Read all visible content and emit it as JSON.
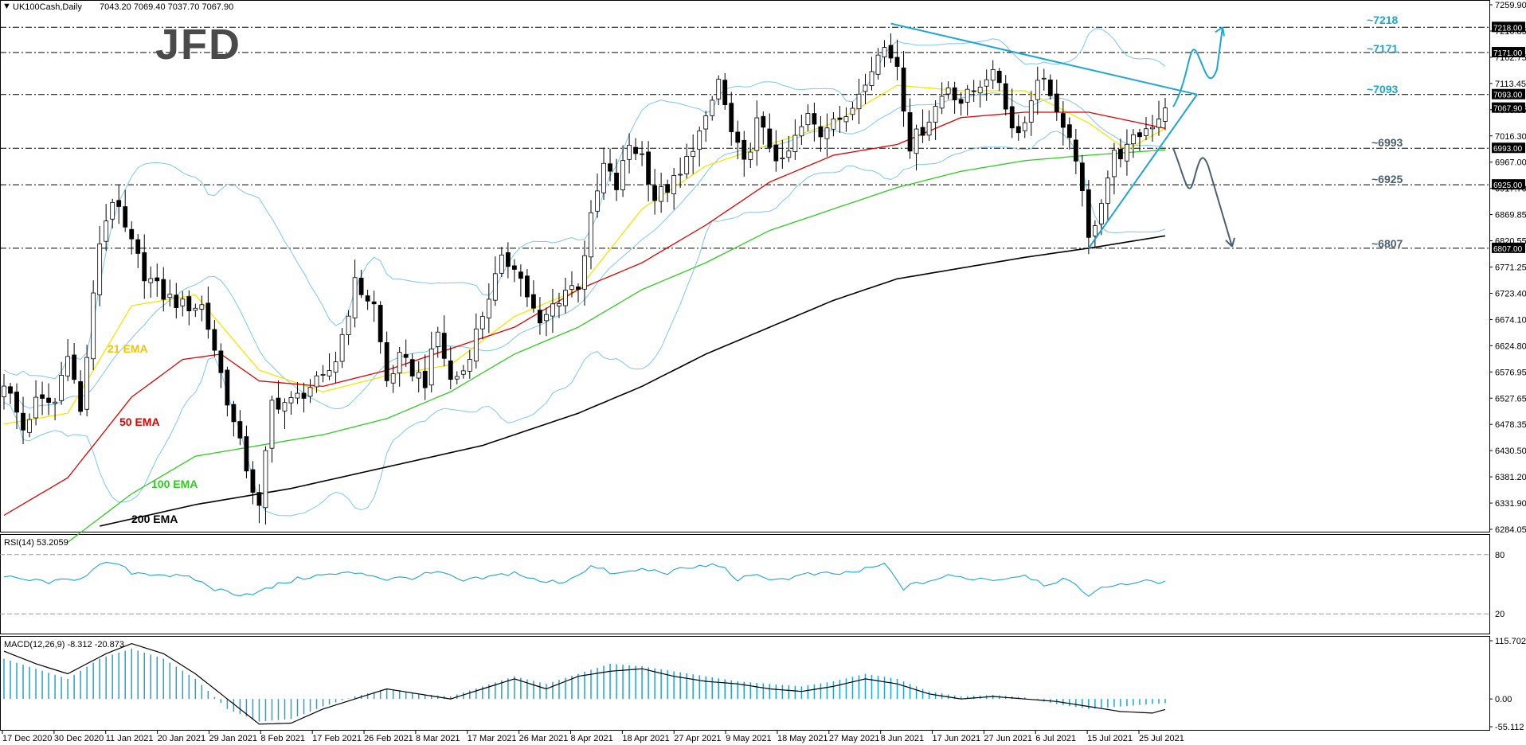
{
  "header": {
    "instrument": "UK100Cash,Daily",
    "ohlc": "7043.20 7069.40 7037.70 7067.90"
  },
  "logo": {
    "text": "JFD"
  },
  "colors": {
    "cyan": "#1ba6d6",
    "ema21": "#f5e600",
    "ema50": "#e00000",
    "ema100": "#2ecc1f",
    "ema200": "#000000",
    "bb": "#7cc7ec",
    "rsi": "#1ba6d6",
    "macd_hist": "#1ba6d6",
    "arrow_down": "#4a6070"
  },
  "price_axis": {
    "ticks": [
      "7259.90",
      "7210.85",
      "7162.75",
      "7113.45",
      "7065.55",
      "7016.30",
      "6967.00",
      "6917.70",
      "6869.85",
      "6820.55",
      "6771.25",
      "6723.40",
      "6674.10",
      "6624.80",
      "6576.95",
      "6527.65",
      "6478.35",
      "6430.50",
      "6381.20",
      "6331.90",
      "6284.05"
    ],
    "boxed": [
      {
        "text": "7218.00",
        "price": 7218,
        "style": "black"
      },
      {
        "text": "7171.00",
        "price": 7171,
        "style": "black"
      },
      {
        "text": "7093.00",
        "price": 7093,
        "style": "black"
      },
      {
        "text": "7067.90",
        "price": 7067.9,
        "style": "black"
      },
      {
        "text": "6993.00",
        "price": 6993,
        "style": "black"
      },
      {
        "text": "6925.00",
        "price": 6925,
        "style": "black"
      },
      {
        "text": "6807.00",
        "price": 6807,
        "style": "black"
      }
    ]
  },
  "levels": [
    {
      "label": "~7218",
      "price": 7218,
      "color": "#1ba6d6"
    },
    {
      "label": "~7171",
      "price": 7171,
      "color": "#1ba6d6"
    },
    {
      "label": "~7093",
      "price": 7093,
      "color": "#1ba6d6"
    },
    {
      "label": "~6993",
      "price": 6993,
      "color": "#4a6070"
    },
    {
      "label": "~6925",
      "price": 6925,
      "color": "#4a6070"
    },
    {
      "label": "~6807",
      "price": 6807,
      "color": "#4a6070"
    }
  ],
  "ema_labels": [
    {
      "text": "21 EMA",
      "color": "#f5c400"
    },
    {
      "text": "50 EMA",
      "color": "#e00000"
    },
    {
      "text": "100 EMA",
      "color": "#2ecc1f"
    },
    {
      "text": "200 EMA",
      "color": "#000000"
    }
  ],
  "rsi": {
    "label": "RSI(14) 53.2059",
    "levels": [
      "80",
      "20"
    ]
  },
  "macd": {
    "label": "MACD(12,26,9) -8.312 -20.873",
    "ticks": [
      "115.702",
      "0.00",
      "-55.112"
    ]
  },
  "date_axis": [
    "17 Dec 2020",
    "30 Dec 2020",
    "11 Jan 2021",
    "20 Jan 2021",
    "29 Jan 2021",
    "8 Feb 2021",
    "17 Feb 2021",
    "26 Feb 2021",
    "8 Mar 2021",
    "17 Mar 2021",
    "26 Mar 2021",
    "8 Apr 2021",
    "18 Apr 2021",
    "27 Apr 2021",
    "9 May 2021",
    "18 May 2021",
    "27 May 2021",
    "8 Jun 2021",
    "17 Jun 2021",
    "27 Jun 2021",
    "6 Jul 2021",
    "15 Jul 2021",
    "25 Jul 2021"
  ],
  "chart_data": {
    "type": "candlestick",
    "title": "UK100Cash,Daily",
    "ylim": [
      6284.05,
      7259.9
    ],
    "close_anchors": [
      [
        0,
        6560
      ],
      [
        3,
        6470
      ],
      [
        5,
        6520
      ],
      [
        8,
        6520
      ],
      [
        10,
        6620
      ],
      [
        12,
        6500
      ],
      [
        15,
        6820
      ],
      [
        17,
        6900
      ],
      [
        19,
        6840
      ],
      [
        22,
        6760
      ],
      [
        25,
        6720
      ],
      [
        28,
        6700
      ],
      [
        31,
        6700
      ],
      [
        33,
        6620
      ],
      [
        36,
        6480
      ],
      [
        38,
        6400
      ],
      [
        40,
        6320
      ],
      [
        42,
        6520
      ],
      [
        45,
        6520
      ],
      [
        48,
        6550
      ],
      [
        50,
        6560
      ],
      [
        52,
        6600
      ],
      [
        55,
        6740
      ],
      [
        58,
        6700
      ],
      [
        60,
        6560
      ],
      [
        62,
        6600
      ],
      [
        64,
        6580
      ],
      [
        66,
        6560
      ],
      [
        68,
        6650
      ],
      [
        70,
        6560
      ],
      [
        72,
        6580
      ],
      [
        74,
        6650
      ],
      [
        76,
        6720
      ],
      [
        78,
        6780
      ],
      [
        80,
        6780
      ],
      [
        82,
        6720
      ],
      [
        84,
        6660
      ],
      [
        86,
        6700
      ],
      [
        88,
        6730
      ],
      [
        90,
        6740
      ],
      [
        92,
        6860
      ],
      [
        94,
        6960
      ],
      [
        96,
        6920
      ],
      [
        98,
        7000
      ],
      [
        100,
        6980
      ],
      [
        102,
        6900
      ],
      [
        104,
        6920
      ],
      [
        106,
        6940
      ],
      [
        108,
        7000
      ],
      [
        110,
        7040
      ],
      [
        112,
        7120
      ],
      [
        114,
        7020
      ],
      [
        116,
        6960
      ],
      [
        118,
        7040
      ],
      [
        120,
        7000
      ],
      [
        122,
        6960
      ],
      [
        124,
        7010
      ],
      [
        126,
        7050
      ],
      [
        128,
        7020
      ],
      [
        130,
        7060
      ],
      [
        132,
        7040
      ],
      [
        134,
        7100
      ],
      [
        136,
        7150
      ],
      [
        138,
        7180
      ],
      [
        140,
        7150
      ],
      [
        142,
        7000
      ],
      [
        144,
        7030
      ],
      [
        146,
        7070
      ],
      [
        148,
        7110
      ],
      [
        150,
        7080
      ],
      [
        152,
        7100
      ],
      [
        154,
        7130
      ],
      [
        156,
        7120
      ],
      [
        158,
        7030
      ],
      [
        160,
        7040
      ],
      [
        162,
        7130
      ],
      [
        164,
        7100
      ],
      [
        166,
        7020
      ],
      [
        168,
        6980
      ],
      [
        170,
        6820
      ],
      [
        172,
        6900
      ],
      [
        174,
        6980
      ],
      [
        176,
        6990
      ],
      [
        178,
        7020
      ],
      [
        180,
        7040
      ],
      [
        182,
        7067.9
      ]
    ],
    "series": [
      {
        "name": "21 EMA",
        "anchors": [
          [
            0,
            6480
          ],
          [
            10,
            6500
          ],
          [
            20,
            6700
          ],
          [
            30,
            6720
          ],
          [
            40,
            6580
          ],
          [
            50,
            6540
          ],
          [
            60,
            6570
          ],
          [
            70,
            6590
          ],
          [
            80,
            6680
          ],
          [
            90,
            6730
          ],
          [
            100,
            6880
          ],
          [
            110,
            6960
          ],
          [
            120,
            7000
          ],
          [
            130,
            7040
          ],
          [
            140,
            7110
          ],
          [
            150,
            7100
          ],
          [
            160,
            7100
          ],
          [
            170,
            7040
          ],
          [
            176,
            6990
          ],
          [
            182,
            7030
          ]
        ]
      },
      {
        "name": "50 EMA",
        "anchors": [
          [
            0,
            6310
          ],
          [
            10,
            6380
          ],
          [
            20,
            6530
          ],
          [
            28,
            6600
          ],
          [
            34,
            6610
          ],
          [
            40,
            6560
          ],
          [
            50,
            6550
          ],
          [
            60,
            6580
          ],
          [
            70,
            6620
          ],
          [
            80,
            6660
          ],
          [
            90,
            6730
          ],
          [
            100,
            6780
          ],
          [
            110,
            6850
          ],
          [
            120,
            6930
          ],
          [
            130,
            6980
          ],
          [
            140,
            7000
          ],
          [
            150,
            7050
          ],
          [
            160,
            7060
          ],
          [
            170,
            7060
          ],
          [
            182,
            7030
          ]
        ]
      },
      {
        "name": "100 EMA",
        "anchors": [
          [
            10,
            6260
          ],
          [
            20,
            6350
          ],
          [
            30,
            6420
          ],
          [
            40,
            6440
          ],
          [
            50,
            6460
          ],
          [
            60,
            6490
          ],
          [
            70,
            6540
          ],
          [
            80,
            6610
          ],
          [
            90,
            6660
          ],
          [
            100,
            6730
          ],
          [
            110,
            6780
          ],
          [
            120,
            6840
          ],
          [
            130,
            6880
          ],
          [
            140,
            6920
          ],
          [
            150,
            6950
          ],
          [
            160,
            6970
          ],
          [
            170,
            6980
          ],
          [
            182,
            6990
          ]
        ]
      },
      {
        "name": "200 EMA",
        "anchors": [
          [
            15,
            6290
          ],
          [
            30,
            6330
          ],
          [
            45,
            6360
          ],
          [
            60,
            6400
          ],
          [
            75,
            6440
          ],
          [
            90,
            6500
          ],
          [
            100,
            6550
          ],
          [
            110,
            6610
          ],
          [
            120,
            6660
          ],
          [
            130,
            6710
          ],
          [
            140,
            6750
          ],
          [
            150,
            6770
          ],
          [
            160,
            6790
          ],
          [
            170,
            6807
          ],
          [
            182,
            6830
          ]
        ]
      }
    ],
    "rsi_anchors": [
      [
        0,
        57
      ],
      [
        4,
        54
      ],
      [
        8,
        52
      ],
      [
        12,
        57
      ],
      [
        15,
        68
      ],
      [
        17,
        72
      ],
      [
        20,
        62
      ],
      [
        25,
        60
      ],
      [
        30,
        55
      ],
      [
        33,
        45
      ],
      [
        37,
        40
      ],
      [
        40,
        42
      ],
      [
        44,
        52
      ],
      [
        48,
        58
      ],
      [
        52,
        60
      ],
      [
        56,
        62
      ],
      [
        60,
        55
      ],
      [
        64,
        57
      ],
      [
        68,
        62
      ],
      [
        72,
        53
      ],
      [
        76,
        57
      ],
      [
        80,
        62
      ],
      [
        84,
        52
      ],
      [
        88,
        53
      ],
      [
        92,
        68
      ],
      [
        96,
        60
      ],
      [
        100,
        65
      ],
      [
        104,
        62
      ],
      [
        108,
        67
      ],
      [
        112,
        70
      ],
      [
        115,
        55
      ],
      [
        118,
        58
      ],
      [
        122,
        55
      ],
      [
        126,
        60
      ],
      [
        130,
        60
      ],
      [
        134,
        63
      ],
      [
        138,
        70
      ],
      [
        141,
        46
      ],
      [
        144,
        52
      ],
      [
        148,
        58
      ],
      [
        152,
        56
      ],
      [
        156,
        55
      ],
      [
        160,
        60
      ],
      [
        163,
        50
      ],
      [
        166,
        55
      ],
      [
        170,
        40
      ],
      [
        174,
        50
      ],
      [
        178,
        52
      ],
      [
        182,
        53.2
      ]
    ],
    "macd_line_anchors": [
      [
        0,
        95
      ],
      [
        5,
        70
      ],
      [
        10,
        50
      ],
      [
        16,
        90
      ],
      [
        20,
        110
      ],
      [
        25,
        90
      ],
      [
        30,
        50
      ],
      [
        35,
        0
      ],
      [
        40,
        -50
      ],
      [
        45,
        -48
      ],
      [
        50,
        -20
      ],
      [
        55,
        0
      ],
      [
        60,
        20
      ],
      [
        65,
        10
      ],
      [
        70,
        0
      ],
      [
        75,
        20
      ],
      [
        80,
        40
      ],
      [
        85,
        20
      ],
      [
        90,
        45
      ],
      [
        95,
        55
      ],
      [
        100,
        60
      ],
      [
        105,
        45
      ],
      [
        110,
        35
      ],
      [
        115,
        30
      ],
      [
        120,
        20
      ],
      [
        125,
        15
      ],
      [
        130,
        25
      ],
      [
        135,
        40
      ],
      [
        140,
        30
      ],
      [
        145,
        10
      ],
      [
        150,
        0
      ],
      [
        155,
        5
      ],
      [
        160,
        0
      ],
      [
        165,
        -5
      ],
      [
        170,
        -15
      ],
      [
        175,
        -25
      ],
      [
        180,
        -28
      ],
      [
        182,
        -20.9
      ]
    ],
    "macd_hist_anchors": [
      [
        0,
        80
      ],
      [
        5,
        60
      ],
      [
        10,
        40
      ],
      [
        15,
        80
      ],
      [
        20,
        100
      ],
      [
        25,
        80
      ],
      [
        30,
        40
      ],
      [
        35,
        -20
      ],
      [
        40,
        -45
      ],
      [
        45,
        -40
      ],
      [
        50,
        -15
      ],
      [
        55,
        5
      ],
      [
        60,
        20
      ],
      [
        65,
        10
      ],
      [
        70,
        5
      ],
      [
        75,
        25
      ],
      [
        80,
        45
      ],
      [
        85,
        30
      ],
      [
        90,
        50
      ],
      [
        95,
        70
      ],
      [
        100,
        65
      ],
      [
        105,
        55
      ],
      [
        110,
        45
      ],
      [
        115,
        35
      ],
      [
        120,
        30
      ],
      [
        125,
        25
      ],
      [
        130,
        35
      ],
      [
        135,
        50
      ],
      [
        140,
        40
      ],
      [
        145,
        15
      ],
      [
        150,
        5
      ],
      [
        155,
        8
      ],
      [
        160,
        3
      ],
      [
        165,
        -10
      ],
      [
        170,
        -20
      ],
      [
        175,
        -15
      ],
      [
        180,
        -10
      ],
      [
        182,
        -8.3
      ]
    ]
  }
}
